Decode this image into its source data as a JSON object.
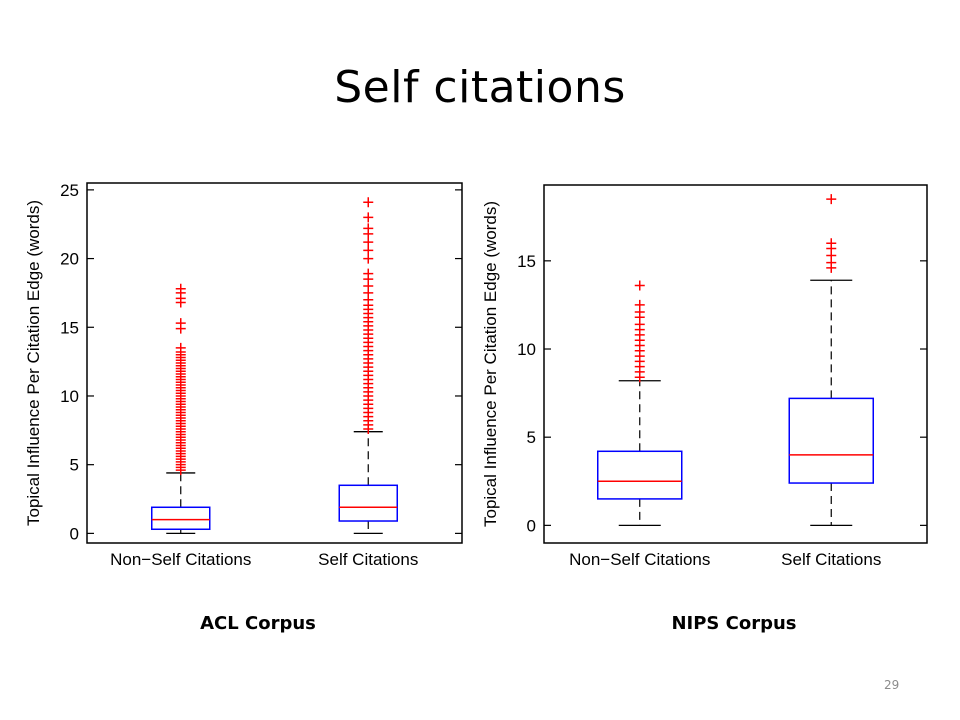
{
  "slide": {
    "title": "Self citations",
    "page_number": "29"
  },
  "chart_data": [
    {
      "type": "box",
      "caption": "ACL Corpus",
      "ylabel": "Topical Influence Per Citation Edge (words)",
      "categories": [
        "Non−Self Citations",
        "Self Citations"
      ],
      "ylim": [
        -0.7,
        25.5
      ],
      "yticks": [
        0,
        5,
        10,
        15,
        20,
        25
      ],
      "grid": false,
      "colors": {
        "box": "#0000ff",
        "median": "#ff0000",
        "outlier": "#ff0000",
        "whisker": "#000000"
      },
      "boxes": [
        {
          "category": "Non−Self Citations",
          "min": 0.0,
          "q1": 0.3,
          "median": 1.0,
          "q3": 1.9,
          "max": 4.4,
          "outliers": [
            4.6,
            4.8,
            5.0,
            5.2,
            5.4,
            5.6,
            5.8,
            6.0,
            6.2,
            6.4,
            6.6,
            6.8,
            7.0,
            7.2,
            7.4,
            7.6,
            7.8,
            8.0,
            8.2,
            8.4,
            8.6,
            8.8,
            9.0,
            9.2,
            9.4,
            9.6,
            9.8,
            10.0,
            10.2,
            10.4,
            10.6,
            10.8,
            11.0,
            11.2,
            11.4,
            11.6,
            11.8,
            12.0,
            12.2,
            12.4,
            12.6,
            12.8,
            13.0,
            13.2,
            13.5,
            14.9,
            15.3,
            16.8,
            17.1,
            17.5,
            17.8
          ]
        },
        {
          "category": "Self Citations",
          "min": 0.0,
          "q1": 0.9,
          "median": 1.9,
          "q3": 3.5,
          "max": 7.4,
          "outliers": [
            7.6,
            7.9,
            8.2,
            8.5,
            8.8,
            9.1,
            9.4,
            9.7,
            10.0,
            10.3,
            10.6,
            10.9,
            11.2,
            11.5,
            11.8,
            12.1,
            12.4,
            12.7,
            13.0,
            13.3,
            13.6,
            13.9,
            14.2,
            14.5,
            14.8,
            15.1,
            15.4,
            15.7,
            16.0,
            16.3,
            16.6,
            17.0,
            17.5,
            18.0,
            18.5,
            18.9,
            20.0,
            20.6,
            21.2,
            21.8,
            22.2,
            23.0,
            24.1
          ]
        }
      ]
    },
    {
      "type": "box",
      "caption": "NIPS Corpus",
      "ylabel": "Topical Influence Per Citation Edge (words)",
      "categories": [
        "Non−Self Citations",
        "Self Citations"
      ],
      "ylim": [
        -1.0,
        19.3
      ],
      "yticks": [
        0,
        5,
        10,
        15
      ],
      "grid": false,
      "colors": {
        "box": "#0000ff",
        "median": "#ff0000",
        "outlier": "#ff0000",
        "whisker": "#000000"
      },
      "boxes": [
        {
          "category": "Non−Self Citations",
          "min": 0.0,
          "q1": 1.5,
          "median": 2.5,
          "q3": 4.2,
          "max": 8.2,
          "outliers": [
            8.4,
            8.7,
            9.0,
            9.3,
            9.6,
            9.9,
            10.2,
            10.5,
            10.8,
            11.1,
            11.4,
            11.8,
            12.1,
            12.5,
            13.6
          ]
        },
        {
          "category": "Self Citations",
          "min": 0.0,
          "q1": 2.4,
          "median": 4.0,
          "q3": 7.2,
          "max": 13.9,
          "outliers": [
            14.6,
            14.9,
            15.3,
            15.7,
            16.0,
            18.5
          ]
        }
      ]
    }
  ]
}
